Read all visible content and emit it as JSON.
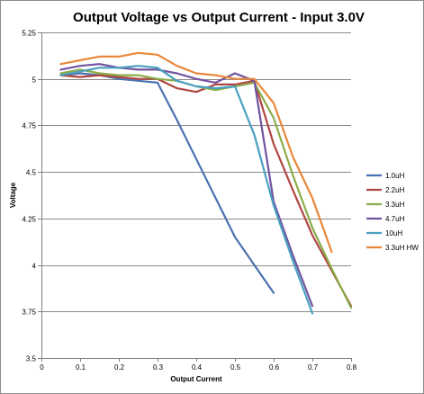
{
  "chart_data": {
    "type": "line",
    "title": "Output Voltage vs Output Current - Input 3.0V",
    "xlabel": "Output Current",
    "ylabel": "Voltage",
    "xlim": [
      0,
      0.8
    ],
    "ylim": [
      3.5,
      5.25
    ],
    "xticks": [
      "0",
      "0.1",
      "0.2",
      "0.3",
      "0.4",
      "0.5",
      "0.6",
      "0.7",
      "0.8"
    ],
    "yticks": [
      "3.5",
      "3.75",
      "4",
      "4.25",
      "4.5",
      "4.75",
      "5",
      "5.25"
    ],
    "grid": "horizontal",
    "legend_position": "right",
    "series": [
      {
        "name": "1.0uH",
        "color": "#4a72b0",
        "x": [
          0.05,
          0.1,
          0.15,
          0.2,
          0.25,
          0.3,
          0.35,
          0.4,
          0.45,
          0.5,
          0.55,
          0.6
        ],
        "y": [
          5.02,
          5.03,
          5.02,
          5.0,
          4.99,
          4.98,
          4.78,
          4.57,
          4.36,
          4.15,
          4.0,
          3.85
        ]
      },
      {
        "name": "2.2uH",
        "color": "#b04642",
        "x": [
          0.05,
          0.1,
          0.15,
          0.2,
          0.25,
          0.3,
          0.35,
          0.4,
          0.45,
          0.5,
          0.55,
          0.6,
          0.65,
          0.7,
          0.75,
          0.8
        ],
        "y": [
          5.02,
          5.01,
          5.02,
          5.01,
          5.0,
          5.0,
          4.95,
          4.93,
          4.97,
          4.97,
          4.99,
          4.65,
          4.4,
          4.16,
          3.97,
          3.78
        ]
      },
      {
        "name": "3.3uH",
        "color": "#8aac4a",
        "x": [
          0.05,
          0.1,
          0.15,
          0.2,
          0.25,
          0.3,
          0.35,
          0.4,
          0.45,
          0.5,
          0.55,
          0.6,
          0.65,
          0.7,
          0.75,
          0.8
        ],
        "y": [
          5.03,
          5.05,
          5.03,
          5.02,
          5.02,
          5.0,
          4.99,
          4.96,
          4.94,
          4.96,
          4.98,
          4.79,
          4.48,
          4.2,
          3.98,
          3.77
        ]
      },
      {
        "name": "4.7uH",
        "color": "#7153a0",
        "x": [
          0.05,
          0.1,
          0.15,
          0.2,
          0.25,
          0.3,
          0.35,
          0.4,
          0.45,
          0.5,
          0.55,
          0.6,
          0.65,
          0.7
        ],
        "y": [
          5.05,
          5.07,
          5.08,
          5.06,
          5.05,
          5.05,
          5.03,
          5.0,
          4.98,
          5.03,
          4.99,
          4.34,
          4.05,
          3.78
        ]
      },
      {
        "name": "10uH",
        "color": "#4aa0c0",
        "x": [
          0.05,
          0.1,
          0.15,
          0.2,
          0.25,
          0.3,
          0.35,
          0.4,
          0.45,
          0.5,
          0.55,
          0.6,
          0.65,
          0.7
        ],
        "y": [
          5.02,
          5.04,
          5.06,
          5.06,
          5.07,
          5.06,
          4.99,
          4.96,
          4.95,
          4.96,
          4.7,
          4.32,
          4.02,
          3.74
        ]
      },
      {
        "name": "3.3uH HW",
        "color": "#e8883a",
        "x": [
          0.05,
          0.1,
          0.15,
          0.2,
          0.25,
          0.3,
          0.35,
          0.4,
          0.45,
          0.5,
          0.55,
          0.6,
          0.65,
          0.7,
          0.75
        ],
        "y": [
          5.08,
          5.1,
          5.12,
          5.12,
          5.14,
          5.13,
          5.07,
          5.03,
          5.02,
          5.0,
          5.0,
          4.87,
          4.58,
          4.36,
          4.07
        ]
      }
    ]
  }
}
